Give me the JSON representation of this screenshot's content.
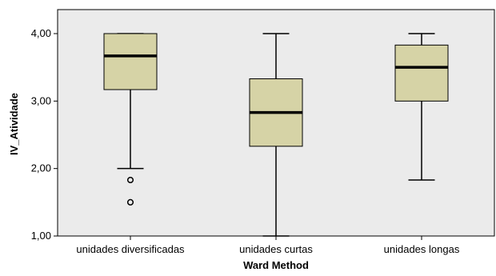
{
  "chart_data": {
    "type": "boxplot",
    "xlabel": "Ward Method",
    "ylabel": "IV_Atividade",
    "ylim": [
      1.0,
      4.0
    ],
    "yticks": [
      1.0,
      2.0,
      3.0,
      4.0
    ],
    "ytick_labels": [
      "1,00",
      "2,00",
      "3,00",
      "4,00"
    ],
    "categories": [
      "unidades diversificadas",
      "unidades curtas",
      "unidades longas"
    ],
    "boxes": [
      {
        "whisker_low": 2.0,
        "q1": 3.17,
        "median": 3.67,
        "q3": 4.0,
        "whisker_high": 4.0,
        "outliers": [
          1.83,
          1.5
        ]
      },
      {
        "whisker_low": 1.0,
        "q1": 2.33,
        "median": 2.83,
        "q3": 3.33,
        "whisker_high": 4.0,
        "outliers": []
      },
      {
        "whisker_low": 1.83,
        "q1": 3.0,
        "median": 3.5,
        "q3": 3.83,
        "whisker_high": 4.0,
        "outliers": []
      }
    ],
    "grid": false,
    "legend": "none",
    "colors": {
      "plot_background": "#ebebeb",
      "box_fill": "#d6d3a6",
      "line": "#000000"
    }
  }
}
